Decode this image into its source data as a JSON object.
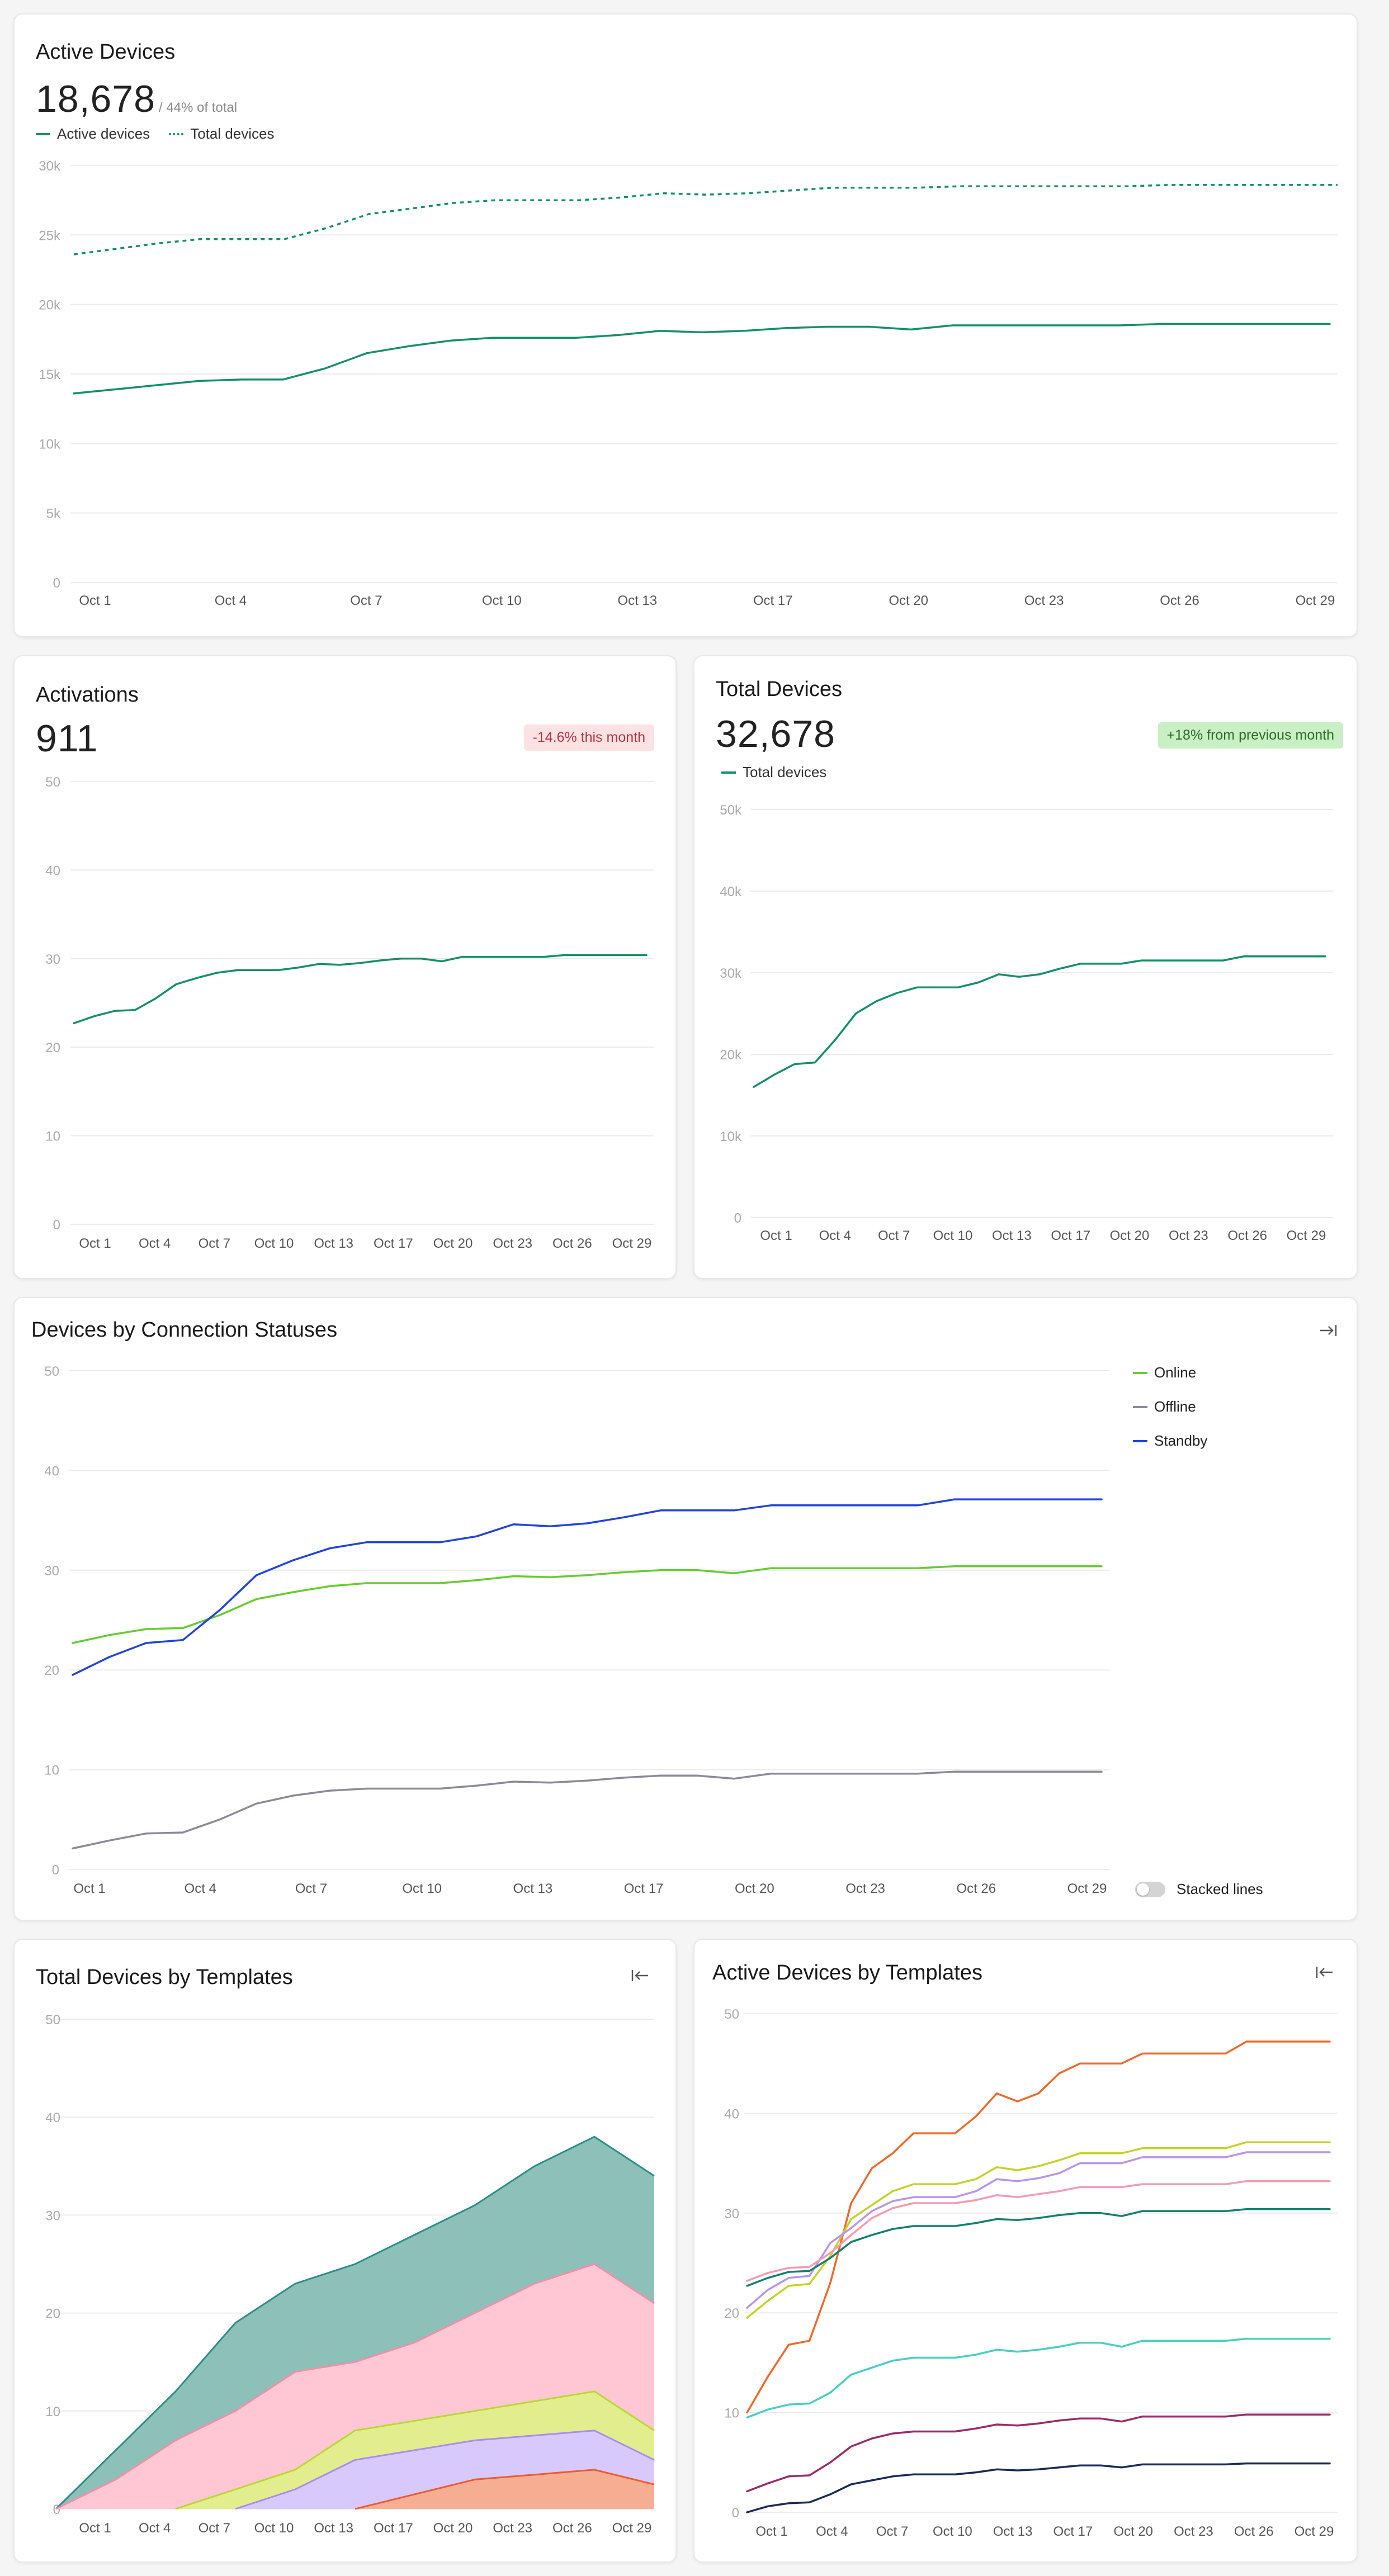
{
  "colors": {
    "teal": "#14906a",
    "online": "#66cc33",
    "offline": "#8a8a9a",
    "standby": "#2244dd",
    "grid": "#ebebeb",
    "axis_text": "#aaaaaa",
    "tick_text": "#555555"
  },
  "active_devices": {
    "title": "Active Devices",
    "value": "18,678",
    "note": "/ 44% of total",
    "legend": [
      "Active devices",
      "Total devices"
    ]
  },
  "activations": {
    "title": "Activations",
    "value": "911",
    "badge": "-14.6% this month"
  },
  "total_devices": {
    "title": "Total Devices",
    "value": "32,678",
    "badge": "+18% from previous month",
    "legend": [
      "Total devices"
    ]
  },
  "connection_statuses": {
    "title": "Devices by Connection Statuses",
    "legend": [
      "Online",
      "Offline",
      "Standby"
    ],
    "toggle_label": "Stacked lines",
    "collapse_icon": "collapse-right-icon"
  },
  "templates_total": {
    "title": "Total Devices by Templates",
    "expand_icon": "expand-left-icon"
  },
  "templates_active": {
    "title": "Active Devices by Templates",
    "expand_icon": "expand-left-icon"
  },
  "chart_data": [
    {
      "id": "active",
      "type": "line",
      "ylim": [
        0,
        30000
      ],
      "yticks": [
        0,
        5000,
        10000,
        15000,
        20000,
        25000,
        30000
      ],
      "ytick_labels": [
        "0",
        "5k",
        "10k",
        "15k",
        "20k",
        "25k",
        "30k"
      ],
      "x_tick_labels": [
        "Oct 1",
        "Oct 4",
        "Oct 7",
        "Oct 10",
        "Oct 13",
        "Oct 17",
        "Oct 20",
        "Oct 23",
        "Oct 26",
        "Oct 29"
      ],
      "series": [
        {
          "name": "Active devices",
          "style": "solid",
          "color": "#14906a",
          "values": [
            13600,
            13900,
            14200,
            14500,
            14600,
            14600,
            15400,
            16500,
            17000,
            17400,
            17600,
            17600,
            17600,
            17800,
            18100,
            18000,
            18100,
            18300,
            18400,
            18400,
            18200,
            18500,
            18500,
            18500,
            18500,
            18500,
            18600,
            18600,
            18600,
            18600,
            18600
          ]
        },
        {
          "name": "Total devices",
          "style": "dotted",
          "color": "#14906a",
          "values": [
            23600,
            24000,
            24400,
            24700,
            24700,
            24700,
            25500,
            26500,
            26900,
            27300,
            27500,
            27500,
            27500,
            27700,
            28000,
            27900,
            28000,
            28200,
            28400,
            28400,
            28400,
            28500,
            28500,
            28500,
            28500,
            28500,
            28600,
            28600,
            28600,
            28600,
            28600
          ]
        }
      ]
    },
    {
      "id": "activations",
      "type": "line",
      "ylim": [
        0,
        50
      ],
      "yticks": [
        0,
        10,
        20,
        30,
        40,
        50
      ],
      "ytick_labels": [
        "0",
        "10",
        "20",
        "30",
        "40",
        "50"
      ],
      "x_tick_labels": [
        "Oct 1",
        "Oct 4",
        "Oct 7",
        "Oct 10",
        "Oct 13",
        "Oct 17",
        "Oct 20",
        "Oct 23",
        "Oct 26",
        "Oct 29"
      ],
      "series": [
        {
          "name": "Activations",
          "style": "solid",
          "color": "#14906a",
          "values": [
            22.7,
            23.5,
            24.1,
            24.2,
            25.5,
            27.1,
            27.8,
            28.4,
            28.7,
            28.7,
            28.7,
            29.0,
            29.4,
            29.3,
            29.5,
            29.8,
            30.0,
            30.0,
            29.7,
            30.2,
            30.2,
            30.2,
            30.2,
            30.2,
            30.4,
            30.4,
            30.4,
            30.4,
            30.4
          ]
        }
      ]
    },
    {
      "id": "total",
      "type": "line",
      "ylim": [
        0,
        50000
      ],
      "yticks": [
        0,
        10000,
        20000,
        30000,
        40000,
        50000
      ],
      "ytick_labels": [
        "0",
        "10k",
        "20k",
        "30k",
        "40k",
        "50k"
      ],
      "x_tick_labels": [
        "Oct 1",
        "Oct 4",
        "Oct 7",
        "Oct 10",
        "Oct 13",
        "Oct 17",
        "Oct 20",
        "Oct 23",
        "Oct 26",
        "Oct 29"
      ],
      "series": [
        {
          "name": "Total devices",
          "style": "solid",
          "color": "#14906a",
          "values": [
            16000,
            17500,
            18800,
            19000,
            21800,
            25000,
            26500,
            27500,
            28200,
            28200,
            28200,
            28800,
            29800,
            29500,
            29800,
            30500,
            31100,
            31100,
            31100,
            31500,
            31500,
            31500,
            31500,
            31500,
            32000,
            32000,
            32000,
            32000,
            32000
          ]
        }
      ]
    },
    {
      "id": "status",
      "type": "line",
      "ylim": [
        0,
        50
      ],
      "yticks": [
        0,
        10,
        20,
        30,
        40,
        50
      ],
      "ytick_labels": [
        "0",
        "10",
        "20",
        "30",
        "40",
        "50"
      ],
      "x_tick_labels": [
        "Oct 1",
        "Oct 4",
        "Oct 7",
        "Oct 10",
        "Oct 13",
        "Oct 17",
        "Oct 20",
        "Oct 23",
        "Oct 26",
        "Oct 29"
      ],
      "series": [
        {
          "name": "Online",
          "style": "solid",
          "color": "#66cc33",
          "values": [
            22.7,
            23.5,
            24.1,
            24.2,
            25.5,
            27.1,
            27.8,
            28.4,
            28.7,
            28.7,
            28.7,
            29.0,
            29.4,
            29.3,
            29.5,
            29.8,
            30.0,
            30.0,
            29.7,
            30.2,
            30.2,
            30.2,
            30.2,
            30.2,
            30.4,
            30.4,
            30.4,
            30.4,
            30.4
          ]
        },
        {
          "name": "Offline",
          "style": "solid",
          "color": "#8a8a9a",
          "values": [
            2.1,
            2.9,
            3.6,
            3.7,
            5.0,
            6.6,
            7.4,
            7.9,
            8.1,
            8.1,
            8.1,
            8.4,
            8.8,
            8.7,
            8.9,
            9.2,
            9.4,
            9.4,
            9.1,
            9.6,
            9.6,
            9.6,
            9.6,
            9.6,
            9.8,
            9.8,
            9.8,
            9.8,
            9.8
          ]
        },
        {
          "name": "Standby",
          "style": "solid",
          "color": "#2244dd",
          "values": [
            19.5,
            21.3,
            22.7,
            23.0,
            26.0,
            29.5,
            31.0,
            32.2,
            32.8,
            32.8,
            32.8,
            33.4,
            34.6,
            34.4,
            34.7,
            35.3,
            36.0,
            36.0,
            36.0,
            36.5,
            36.5,
            36.5,
            36.5,
            36.5,
            37.1,
            37.1,
            37.1,
            37.1,
            37.1
          ]
        }
      ]
    },
    {
      "id": "templates_total",
      "type": "area",
      "ylim": [
        0,
        50
      ],
      "yticks": [
        0,
        10,
        20,
        30,
        40,
        50
      ],
      "ytick_labels": [
        "0",
        "10",
        "20",
        "30",
        "40",
        "50"
      ],
      "x_tick_labels": [
        "Oct 1",
        "Oct 4",
        "Oct 7",
        "Oct 10",
        "Oct 13",
        "Oct 17",
        "Oct 20",
        "Oct 23",
        "Oct 26",
        "Oct 29"
      ],
      "x": [
        0,
        1,
        2,
        3,
        4,
        5,
        6,
        7,
        8,
        9,
        10
      ],
      "series": [
        {
          "color": "#2a8f86",
          "fill": "#8cc0b9",
          "values": [
            0,
            6,
            12,
            19,
            23,
            25,
            28,
            31,
            35,
            38,
            34
          ]
        },
        {
          "color": "#f48ea8",
          "fill": "#ffc7d3",
          "values": [
            0,
            3,
            7,
            10,
            14,
            15,
            17,
            20,
            23,
            25,
            21
          ]
        },
        {
          "color": "#b9d830",
          "fill": "#e2ee8e",
          "values": [
            null,
            null,
            0,
            2,
            4,
            8,
            9,
            10,
            11,
            12,
            8
          ]
        },
        {
          "color": "#a98cf0",
          "fill": "#d8c9fc",
          "values": [
            null,
            null,
            null,
            0,
            2,
            5,
            6,
            7,
            7.5,
            8,
            5
          ]
        },
        {
          "color": "#ee5a30",
          "fill": "#f6ae92",
          "values": [
            null,
            null,
            null,
            null,
            null,
            0,
            1.5,
            3,
            3.5,
            4,
            2.5
          ]
        }
      ]
    },
    {
      "id": "templates_active",
      "type": "line",
      "ylim": [
        0,
        50
      ],
      "yticks": [
        0,
        10,
        20,
        30,
        40,
        50
      ],
      "ytick_labels": [
        "0",
        "10",
        "20",
        "30",
        "40",
        "50"
      ],
      "x_tick_labels": [
        "Oct 1",
        "Oct 4",
        "Oct 7",
        "Oct 10",
        "Oct 13",
        "Oct 17",
        "Oct 20",
        "Oct 23",
        "Oct 26",
        "Oct 29"
      ],
      "series": [
        {
          "color": "#ee6a2a",
          "values": [
            10.0,
            13.6,
            16.8,
            17.2,
            23.0,
            31.0,
            34.5,
            36.0,
            38.0,
            38.0,
            38.0,
            39.7,
            42.0,
            41.2,
            42.0,
            44.0,
            45.0,
            45.0,
            45.0,
            46.0,
            46.0,
            46.0,
            46.0,
            46.0,
            47.2,
            47.2,
            47.2,
            47.2,
            47.2
          ]
        },
        {
          "color": "#c4d22a",
          "values": [
            19.5,
            21.2,
            22.7,
            22.9,
            25.7,
            29.4,
            30.8,
            32.2,
            32.9,
            32.9,
            32.9,
            33.4,
            34.6,
            34.3,
            34.7,
            35.3,
            36.0,
            36.0,
            36.0,
            36.5,
            36.5,
            36.5,
            36.5,
            36.5,
            37.1,
            37.1,
            37.1,
            37.1,
            37.1
          ]
        },
        {
          "color": "#b995ea",
          "values": [
            20.5,
            22.3,
            23.5,
            23.7,
            27.0,
            28.5,
            30.2,
            31.2,
            31.6,
            31.6,
            31.6,
            32.2,
            33.4,
            33.2,
            33.5,
            34.0,
            35.0,
            35.0,
            35.0,
            35.6,
            35.6,
            35.6,
            35.6,
            35.6,
            36.1,
            36.1,
            36.1,
            36.1,
            36.1
          ]
        },
        {
          "color": "#f69ab2",
          "values": [
            23.2,
            24.0,
            24.5,
            24.6,
            26.0,
            27.8,
            29.5,
            30.5,
            31.0,
            31.0,
            31.0,
            31.3,
            31.8,
            31.6,
            31.9,
            32.2,
            32.6,
            32.6,
            32.6,
            32.9,
            32.9,
            32.9,
            32.9,
            32.9,
            33.2,
            33.2,
            33.2,
            33.2,
            33.2
          ]
        },
        {
          "color": "#14806e",
          "values": [
            22.7,
            23.5,
            24.1,
            24.2,
            25.5,
            27.1,
            27.8,
            28.4,
            28.7,
            28.7,
            28.7,
            29.0,
            29.4,
            29.3,
            29.5,
            29.8,
            30.0,
            30.0,
            29.7,
            30.2,
            30.2,
            30.2,
            30.2,
            30.2,
            30.4,
            30.4,
            30.4,
            30.4,
            30.4
          ]
        },
        {
          "color": "#48cfc2",
          "values": [
            9.5,
            10.3,
            10.8,
            10.9,
            12.0,
            13.8,
            14.5,
            15.2,
            15.5,
            15.5,
            15.5,
            15.8,
            16.3,
            16.1,
            16.3,
            16.6,
            17.0,
            17.0,
            16.6,
            17.2,
            17.2,
            17.2,
            17.2,
            17.2,
            17.4,
            17.4,
            17.4,
            17.4,
            17.4
          ]
        },
        {
          "color": "#9c2a6a",
          "values": [
            2.1,
            2.9,
            3.6,
            3.7,
            5.0,
            6.6,
            7.4,
            7.9,
            8.1,
            8.1,
            8.1,
            8.4,
            8.8,
            8.7,
            8.9,
            9.2,
            9.4,
            9.4,
            9.1,
            9.6,
            9.6,
            9.6,
            9.6,
            9.6,
            9.8,
            9.8,
            9.8,
            9.8,
            9.8
          ]
        },
        {
          "color": "#1c2a5a",
          "values": [
            0.0,
            0.6,
            0.9,
            1.0,
            1.8,
            2.8,
            3.2,
            3.6,
            3.8,
            3.8,
            3.8,
            4.0,
            4.3,
            4.2,
            4.3,
            4.5,
            4.7,
            4.7,
            4.5,
            4.8,
            4.8,
            4.8,
            4.8,
            4.8,
            4.9,
            4.9,
            4.9,
            4.9,
            4.9
          ]
        }
      ]
    }
  ]
}
